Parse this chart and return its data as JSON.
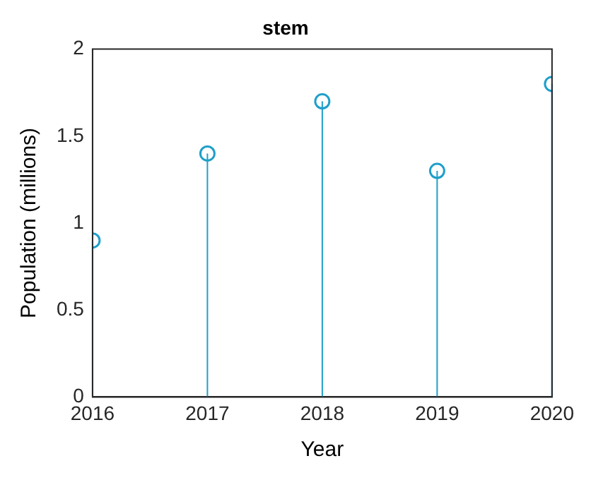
{
  "chart_data": {
    "type": "lollipop",
    "title": "stem",
    "xlabel": "Year",
    "ylabel": "Population (millions)",
    "x": [
      2016,
      2017,
      2018,
      2019,
      2020
    ],
    "series": [
      {
        "color": "#1f9fc9",
        "values": [
          0.9,
          1.4,
          1.7,
          1.3,
          1.8
        ]
      }
    ],
    "xlim": [
      2016,
      2020
    ],
    "xticks": [
      2016,
      2017,
      2018,
      2019,
      2020
    ],
    "ylim": [
      0,
      2
    ],
    "yticks": [
      0,
      0.5,
      1,
      1.5,
      2
    ],
    "marker": "circle",
    "grid": false,
    "legend": false
  }
}
